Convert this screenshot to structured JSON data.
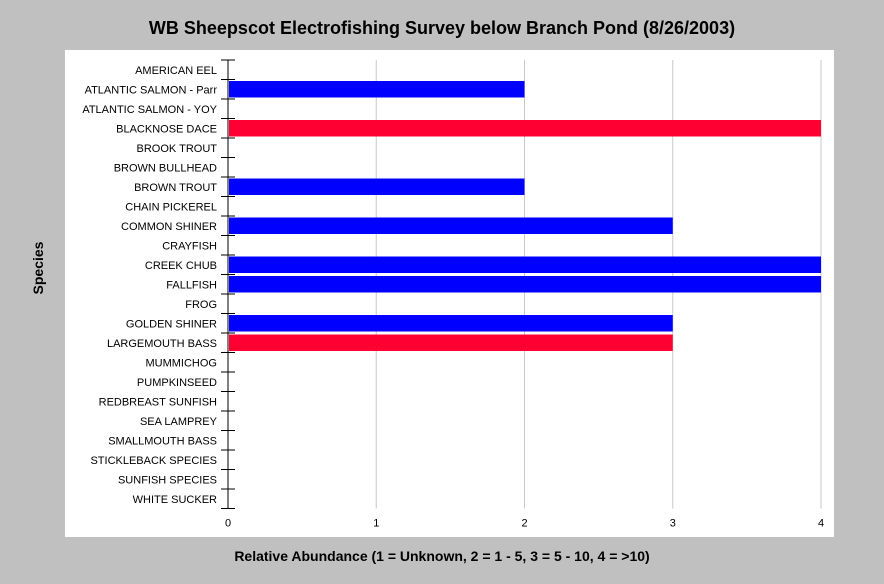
{
  "chart_data": {
    "type": "bar",
    "orientation": "horizontal",
    "title": "WB Sheepscot Electrofishing Survey below Branch Pond (8/26/2003)",
    "xlabel": "Relative Abundance (1 = Unknown, 2 = 1 - 5, 3 = 5 - 10, 4 = >10)",
    "ylabel": "Species",
    "xlim": [
      0,
      4
    ],
    "xticks": [
      "0",
      "1",
      "2",
      "3",
      "4"
    ],
    "grid": "vertical",
    "categories": [
      "AMERICAN EEL",
      "ATLANTIC SALMON  - Parr",
      "ATLANTIC SALMON - YOY",
      "BLACKNOSE DACE",
      "BROOK TROUT",
      "BROWN BULLHEAD",
      "BROWN TROUT",
      "CHAIN PICKEREL",
      "COMMON SHINER",
      "CRAYFISH",
      "CREEK CHUB",
      "FALLFISH",
      "FROG",
      "GOLDEN SHINER",
      "LARGEMOUTH BASS",
      "MUMMICHOG",
      "PUMPKINSEED",
      "REDBREAST SUNFISH",
      "SEA LAMPREY",
      "SMALLMOUTH BASS",
      "STICKLEBACK SPECIES",
      "SUNFISH SPECIES",
      "WHITE SUCKER"
    ],
    "values": [
      0,
      2,
      0,
      4,
      0,
      0,
      2,
      0,
      3,
      0,
      4,
      4,
      0,
      3,
      3,
      0,
      0,
      0,
      0,
      0,
      0,
      0,
      0
    ],
    "bar_colors": [
      "#0000ff",
      "#0000ff",
      "#0000ff",
      "#ff0033",
      "#0000ff",
      "#0000ff",
      "#0000ff",
      "#0000ff",
      "#0000ff",
      "#0000ff",
      "#0000ff",
      "#0000ff",
      "#0000ff",
      "#0000ff",
      "#ff0033",
      "#0000ff",
      "#0000ff",
      "#0000ff",
      "#0000ff",
      "#0000ff",
      "#0000ff",
      "#0000ff",
      "#0000ff"
    ]
  },
  "colors": {
    "background": "#c0c0c0",
    "plot_background": "#ffffff",
    "native_species": "#0000ff",
    "introduced_species": "#ff0033",
    "gridline": "#c8c8c8"
  }
}
